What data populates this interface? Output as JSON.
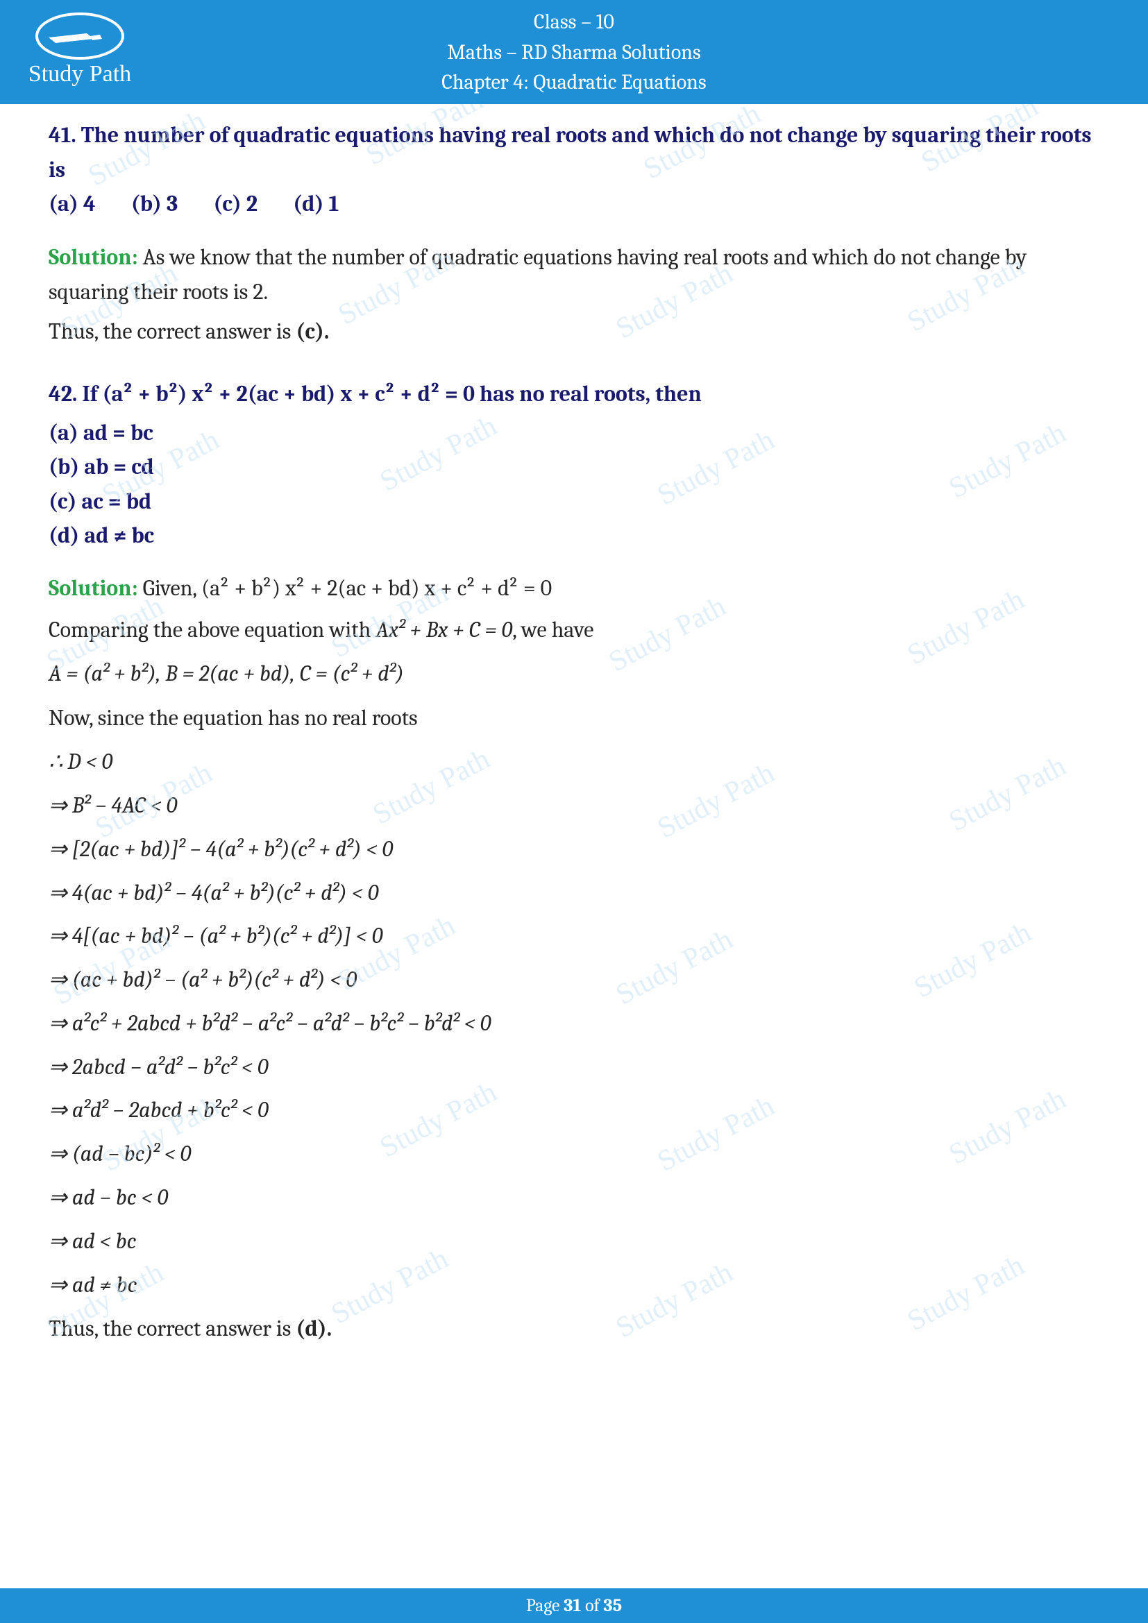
{
  "header": {
    "class_line": "Class – 10",
    "subject_line": "Maths – RD Sharma Solutions",
    "chapter_line": "Chapter 4: Quadratic Equations",
    "logo_text": "Study Path"
  },
  "watermark": "Study Path",
  "q41": {
    "text": "41. The number of quadratic equations having real roots and which do not change by squaring their roots is",
    "opt_a": "(a) 4",
    "opt_b": "(b) 3",
    "opt_c": "(c) 2",
    "opt_d": "(d) 1",
    "sol_label": "Solution:",
    "sol_text": " As we know that the number of quadratic equations having real roots and which do not change by squaring their roots is 2.",
    "ans_prefix": "Thus, the correct answer is ",
    "ans_letter": "(c).",
    "colors": {
      "question": "#1a1a6d",
      "solution_label": "#2aa24a",
      "body": "#262626"
    }
  },
  "q42": {
    "text": "42. If (a² + b²) x² + 2(ac + bd) x + c² + d² = 0 has no real roots, then",
    "opt_a": "(a) ad = bc",
    "opt_b": "(b) ab = cd",
    "opt_c": "(c) ac = bd",
    "opt_d": "(d) ad ≠ bc",
    "sol_label": "Solution:",
    "given": " Given, (a² + b²) x² + 2(ac + bd) x + c² + d² = 0",
    "compare": "Comparing the above equation with ",
    "compare_eq": "Ax² + Bx + C = 0",
    "compare_tail": ", we have",
    "abc_line": "A = (a² + b²), B = 2(ac + bd), C = (c² + d²)",
    "noroots": "Now, since the equation has no real roots",
    "steps": [
      "∴ D < 0",
      "⇒ B² − 4AC < 0",
      "⇒ [2(ac + bd)]² − 4(a² + b²)(c² + d²) < 0",
      "⇒ 4(ac + bd)² − 4(a² + b²)(c² + d²) < 0",
      "⇒ 4[(ac + bd)² − (a² + b²)(c² + d²)] < 0",
      "⇒ (ac + bd)² − (a² + b²)(c² + d²) < 0",
      "⇒ a²c² + 2abcd + b²d² − a²c² − a²d² − b²c² − b²d² < 0",
      "⇒ 2abcd − a²d² − b²c² < 0",
      "⇒ a²d² − 2abcd + b²c² < 0",
      "⇒ (ad − bc)² < 0",
      "⇒ ad − bc < 0",
      "⇒ ad < bc",
      "⇒ ad ≠ bc"
    ],
    "ans_prefix": "Thus, the correct answer is ",
    "ans_letter": "(d)."
  },
  "footer": {
    "prefix": "Page ",
    "current": "31",
    "mid": " of ",
    "total": "35"
  },
  "colors": {
    "header_bg": "#1f8fd6",
    "header_fg": "#ffffff",
    "watermark": "#c9e3f3",
    "question": "#1a1a6d",
    "solution_label": "#2aa24a",
    "body_text": "#262626"
  },
  "fontsizes": {
    "header": 30,
    "body": 32,
    "footer": 26,
    "watermark": 42
  }
}
